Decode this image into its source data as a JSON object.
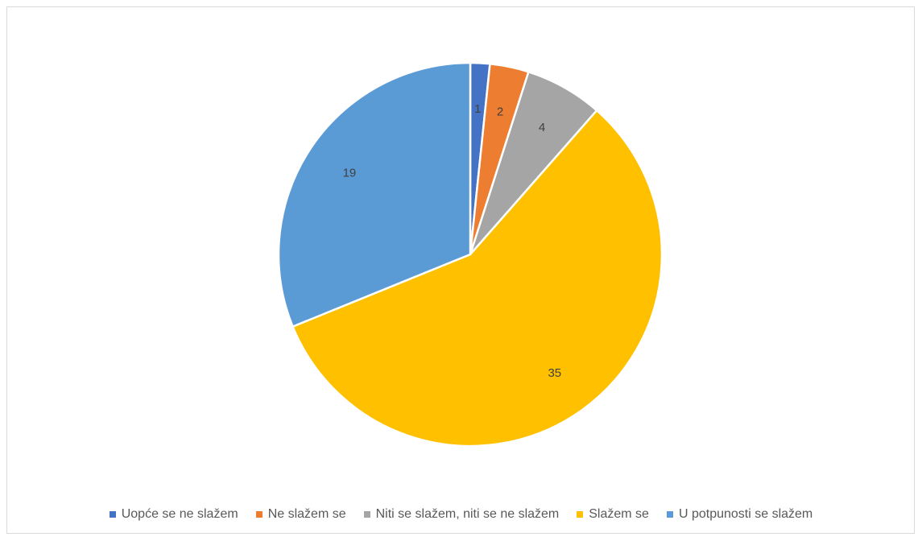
{
  "chart_data": {
    "type": "pie",
    "title": "",
    "categories": [
      "Uopće se ne slažem",
      "Ne slažem se",
      "Niti se slažem, niti se ne slažem",
      "Slažem se",
      "U potpunosti se slažem"
    ],
    "values": [
      1,
      2,
      4,
      35,
      19
    ],
    "colors": [
      "#4472c4",
      "#ed7d31",
      "#a5a5a5",
      "#ffc000",
      "#5b9bd5"
    ],
    "data_labels": [
      "1",
      "2",
      "4",
      "35",
      "19"
    ],
    "legend_position": "bottom",
    "start_angle": "12 o'clock",
    "direction": "clockwise"
  }
}
